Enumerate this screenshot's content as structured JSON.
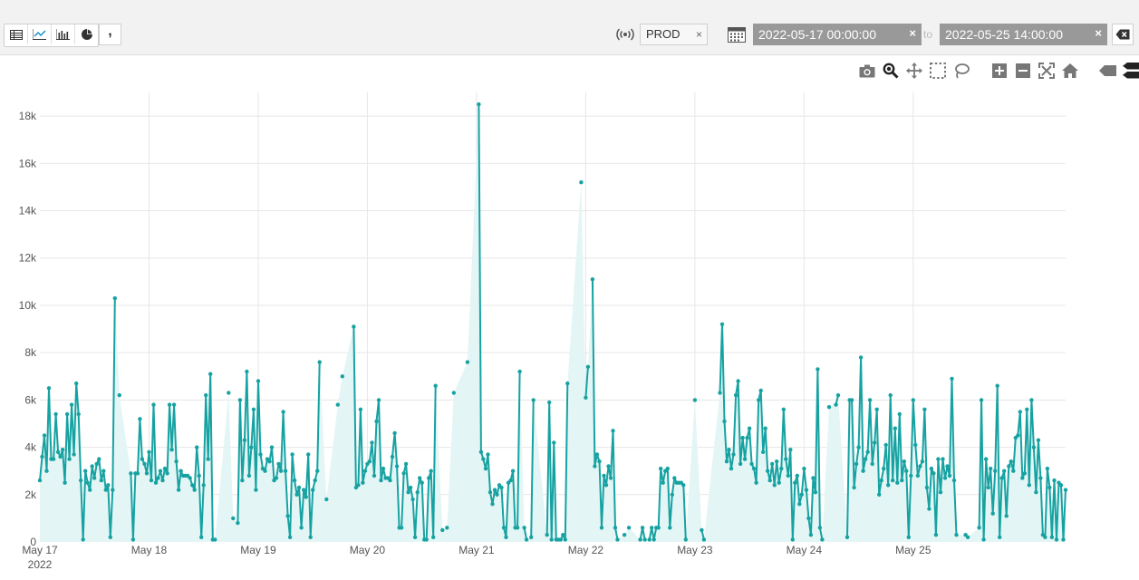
{
  "toolbar": {
    "view_buttons": [
      "table-icon",
      "line-chart-icon",
      "bar-chart-icon",
      "pie-chart-icon",
      "comma-icon"
    ],
    "comma_glyph": ",",
    "env_label": "PROD",
    "clear_glyph": "×",
    "date_from": "2022-05-17 00:00:00",
    "date_to": "2022-05-25 14:00:00",
    "to_label": "to"
  },
  "modebar": [
    "camera-icon",
    "zoom-icon",
    "pan-icon",
    "box-select-icon",
    "lasso-icon",
    "zoom-in-icon",
    "zoom-out-icon",
    "autoscale-icon",
    "reset-axes-icon",
    "hover-closest-icon",
    "hover-compare-icon"
  ],
  "colors": {
    "line": "#17a2a2",
    "fill": "#e4f5f5",
    "grid": "#e6e6e6",
    "date_box": "#999999"
  },
  "chart_data": {
    "type": "area",
    "x_start": "2022-05-17 00:00",
    "x_end": "2022-05-25 14:00",
    "x_step_hours": 0.5,
    "ylim": [
      0,
      19000
    ],
    "ytick_values": [
      0,
      2000,
      4000,
      6000,
      8000,
      10000,
      12000,
      14000,
      16000,
      18000
    ],
    "ytick_labels": [
      "0",
      "2k",
      "4k",
      "6k",
      "8k",
      "10k",
      "12k",
      "14k",
      "16k",
      "18k"
    ],
    "xtick_labels": [
      "May 17",
      "May 18",
      "May 19",
      "May 20",
      "May 21",
      "May 22",
      "May 23",
      "May 24",
      "May 25"
    ],
    "xtick_sublabel": "2022",
    "grid": true,
    "series": [
      {
        "values": [
          2600,
          3600,
          4500,
          3000,
          6500,
          3500,
          3500,
          5400,
          3800,
          3600,
          3900,
          2500,
          5400,
          3500,
          5800,
          3700,
          6700,
          5400,
          2600,
          100,
          3000,
          2500,
          2200,
          3200,
          2700,
          3300,
          3500,
          2600,
          3000,
          2200,
          2400,
          200,
          2200,
          10300,
          null,
          6200,
          null,
          null,
          null,
          null,
          2900,
          100,
          2900,
          2900,
          5200,
          3500,
          3300,
          2900,
          3800,
          2600,
          5800,
          2500,
          2700,
          3000,
          2600,
          3100,
          2900,
          5800,
          3900,
          5800,
          3400,
          2200,
          3000,
          2800,
          2800,
          2800,
          2700,
          2400,
          2200,
          4000,
          2800,
          200,
          2400,
          6200,
          3500,
          7100,
          100,
          100,
          null,
          null,
          null,
          null,
          null,
          6300,
          null,
          1000,
          null,
          800,
          6000,
          2600,
          4300,
          7200,
          2800,
          4000,
          5600,
          2200,
          6800,
          3700,
          3100,
          3000,
          3500,
          3400,
          4000,
          2600,
          2700,
          3300,
          3000,
          5500,
          3000,
          1100,
          200,
          3700,
          2600,
          2000,
          2300,
          600,
          2200,
          1900,
          3700,
          200,
          2200,
          2600,
          3000,
          7600,
          null,
          null,
          1800,
          null,
          null,
          null,
          null,
          5800,
          null,
          7000,
          null,
          null,
          null,
          null,
          9100,
          2300,
          2400,
          5600,
          2500,
          3000,
          3300,
          3400,
          4200,
          2800,
          5100,
          6000,
          2600,
          3100,
          2700,
          2700,
          2600,
          3600,
          4600,
          3200,
          600,
          600,
          2900,
          3300,
          2100,
          2300,
          1800,
          200,
          2100,
          2700,
          2500,
          100,
          100,
          2700,
          3000,
          200,
          6600,
          null,
          null,
          500,
          null,
          600,
          null,
          null,
          6300,
          null,
          null,
          null,
          null,
          null,
          7600,
          null,
          null,
          null,
          null,
          18500,
          3800,
          3500,
          3100,
          3700,
          2100,
          1600,
          2200,
          2000,
          2400,
          2300,
          600,
          200,
          2500,
          2600,
          3000,
          600,
          600,
          7200,
          null,
          600,
          100,
          null,
          200,
          6000,
          null,
          null,
          null,
          null,
          null,
          300,
          5900,
          100,
          4200,
          100,
          100,
          100,
          300,
          100,
          6700,
          null,
          null,
          null,
          null,
          null,
          15200,
          null,
          6100,
          7400,
          null,
          11100,
          3200,
          3700,
          3400,
          600,
          2800,
          2400,
          3200,
          2700,
          4700,
          600,
          100,
          null,
          null,
          300,
          null,
          600,
          null,
          null,
          null,
          null,
          100,
          600,
          100,
          null,
          100,
          600,
          100,
          600,
          600,
          3100,
          2500,
          3000,
          3100,
          600,
          2000,
          2700,
          2500,
          2500,
          2500,
          2400,
          100,
          null,
          null,
          null,
          6000,
          null,
          null,
          500,
          100,
          null,
          null,
          null,
          null,
          null,
          null,
          6300,
          9200,
          5100,
          3400,
          3900,
          3100,
          3700,
          6200,
          6800,
          3300,
          4400,
          3500,
          4400,
          4800,
          3300,
          3100,
          2500,
          6000,
          6400,
          3800,
          4800,
          3000,
          2600,
          3300,
          2400,
          3400,
          2500,
          3100,
          5600,
          3500,
          2800,
          3900,
          100,
          2500,
          2800,
          1600,
          2000,
          3100,
          2200,
          1000,
          300,
          2700,
          2100,
          7300,
          600,
          100,
          null,
          null,
          5700,
          null,
          null,
          5800,
          6200,
          null,
          null,
          null,
          200,
          6000,
          6000,
          2300,
          3300,
          4000,
          7800,
          3000,
          3500,
          3800,
          6000,
          3300,
          4200,
          5600,
          2000,
          2600,
          3100,
          4100,
          2400,
          6200,
          2600,
          4800,
          2500,
          5400,
          2600,
          3400,
          3000,
          200,
          2800,
          6000,
          4100,
          2800,
          3200,
          3400,
          5600,
          2300,
          1400,
          3100,
          2900,
          300,
          3500,
          2100,
          3500,
          2700,
          3200,
          2800,
          6900,
          2600,
          300,
          null,
          null,
          null,
          300,
          200,
          null,
          null,
          null,
          null,
          600,
          6000,
          100,
          3500,
          2300,
          3100,
          1200,
          3000,
          6600,
          200,
          2700,
          3000,
          1100,
          3200,
          3400,
          3000,
          4400,
          4500,
          5500,
          2700,
          2900,
          5600,
          2400,
          6000,
          4000,
          2100,
          4300,
          2700,
          300,
          200,
          3100,
          2300,
          200,
          2600,
          100,
          2500,
          2400,
          100,
          2200
        ]
      }
    ]
  }
}
